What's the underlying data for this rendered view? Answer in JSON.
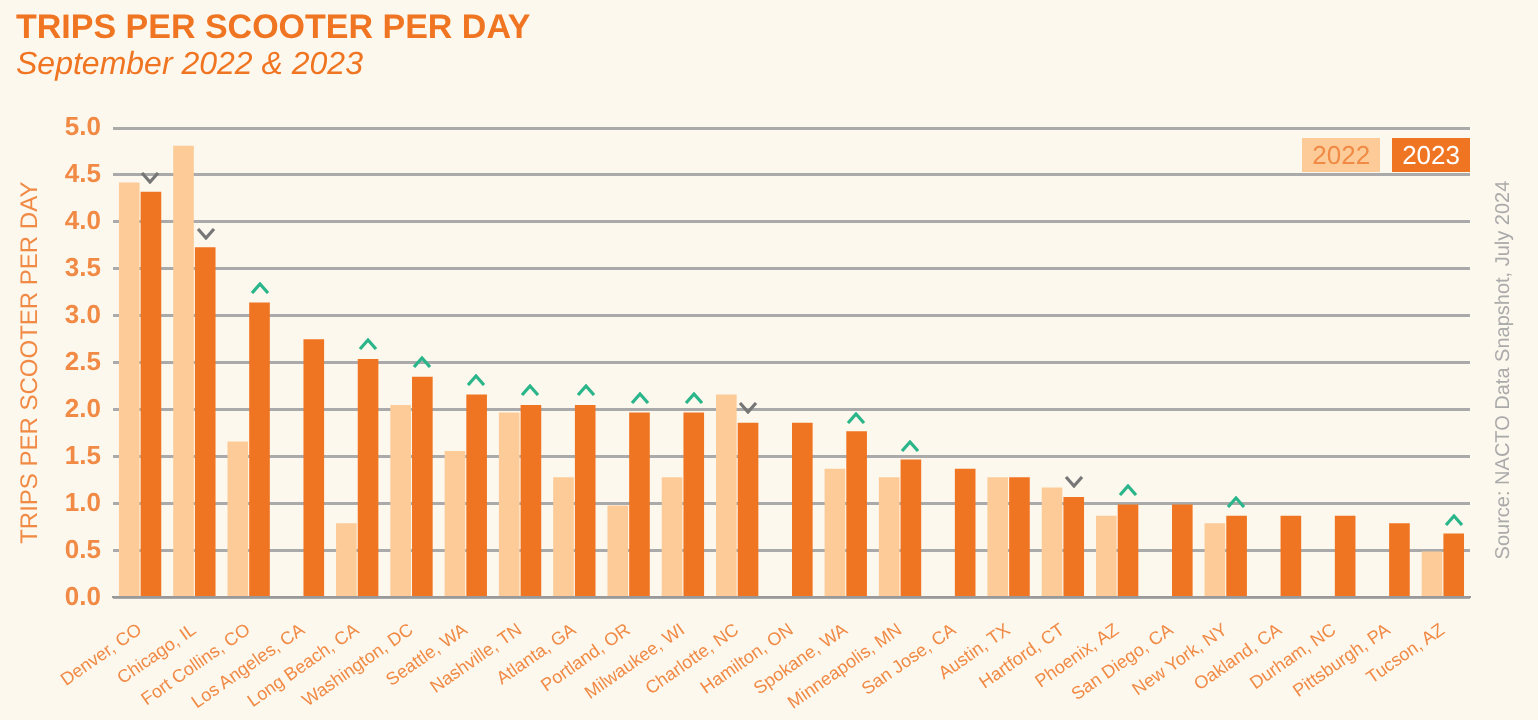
{
  "chart_data": {
    "type": "bar",
    "title": "TRIPS PER SCOOTER PER DAY",
    "subtitle": "September 2022 & 2023",
    "ylabel": "TRIPS PER SCOOTER PER DAY",
    "categories": [
      "Denver, CO",
      "Chicago, IL",
      "Fort Collins, CO",
      "Los Angeles, CA",
      "Long Beach, CA",
      "Washington, DC",
      "Seattle, WA",
      "Nashville, TN",
      "Atlanta, GA",
      "Portland, OR",
      "Milwaukee, WI",
      "Charlotte, NC",
      "Hamilton, ON",
      "Spokane, WA",
      "Minneapolis, MN",
      "San Jose, CA",
      "Austin, TX",
      "Hartford, CT",
      "Phoenix, AZ",
      "San Diego, CA",
      "New York, NY",
      "Oakland, CA",
      "Durham, NC",
      "Pittsburgh, PA",
      "Tucson, AZ"
    ],
    "series": [
      {
        "name": "2022",
        "color": "#fccb98",
        "values": [
          4.42,
          4.81,
          1.66,
          null,
          0.79,
          2.05,
          1.56,
          1.97,
          1.28,
          0.98,
          1.28,
          2.16,
          null,
          1.37,
          1.28,
          null,
          1.28,
          1.17,
          0.87,
          null,
          0.79,
          null,
          null,
          null,
          0.49
        ]
      },
      {
        "name": "2023",
        "color": "#f07522",
        "values": [
          4.32,
          3.73,
          3.14,
          2.75,
          2.54,
          2.35,
          2.16,
          2.05,
          2.05,
          1.97,
          1.97,
          1.86,
          1.86,
          1.77,
          1.47,
          1.37,
          1.28,
          1.07,
          0.99,
          0.99,
          0.87,
          0.87,
          0.87,
          0.79,
          0.68
        ]
      }
    ],
    "ylim": [
      0,
      5
    ],
    "yticks": [
      {
        "value": 0,
        "label": "0.0"
      },
      {
        "value": 0.5,
        "label": "0.5"
      },
      {
        "value": 1,
        "label": "1.0"
      },
      {
        "value": 1.5,
        "label": "1.5"
      },
      {
        "value": 2,
        "label": "2.0"
      },
      {
        "value": 2.5,
        "label": "2.5"
      },
      {
        "value": 3,
        "label": "3.0"
      },
      {
        "value": 3.5,
        "label": "3.5"
      },
      {
        "value": 4,
        "label": "4.0"
      },
      {
        "value": 4.5,
        "label": "4.5"
      },
      {
        "value": 5,
        "label": "5.0"
      }
    ],
    "grid": "y",
    "legend": "top right",
    "annotations": [
      "Source: NACTO Data Snapshot, July 2024"
    ]
  }
}
